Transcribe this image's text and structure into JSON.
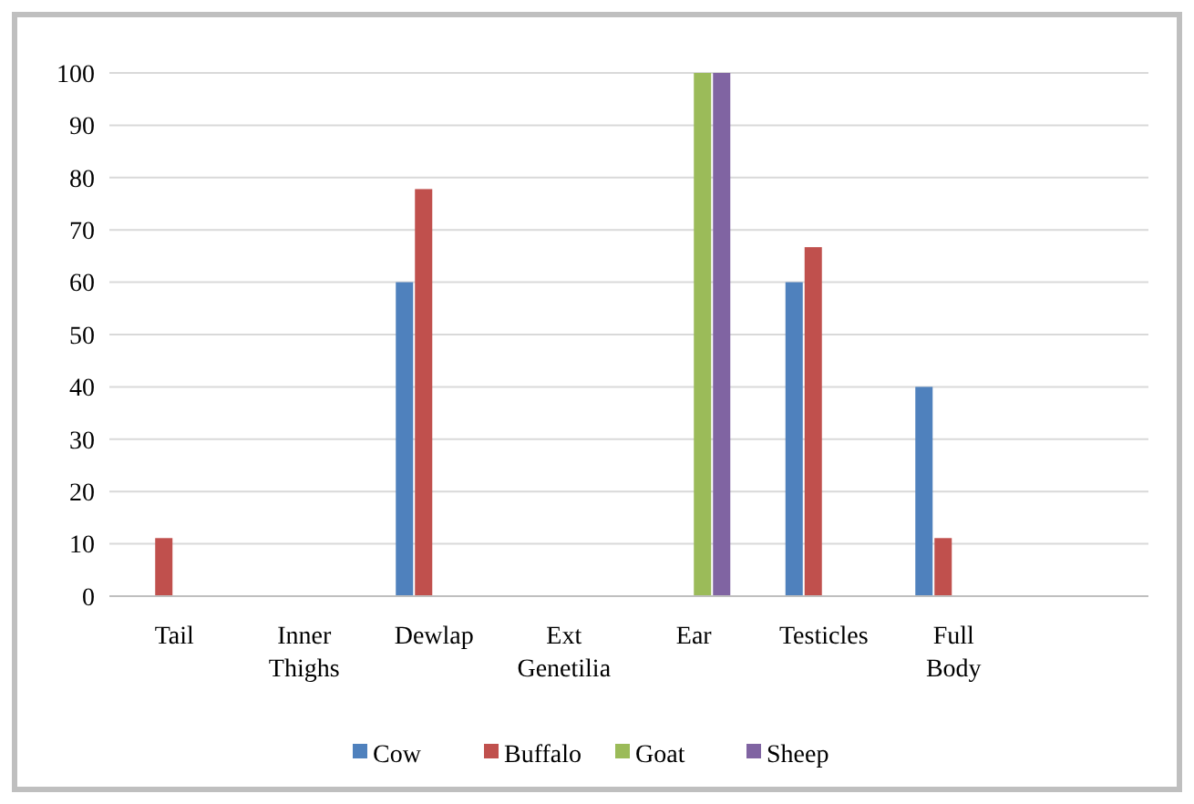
{
  "chart_data": {
    "type": "bar",
    "categories": [
      "Tail",
      "Inner Thighs",
      "Dewlap",
      "Ext Genetilia",
      "Ear",
      "Testicles",
      "Full Body",
      null
    ],
    "series": [
      {
        "name": "Cow",
        "color": "#4f81bd",
        "values": [
          null,
          null,
          60,
          null,
          null,
          60,
          40,
          null
        ]
      },
      {
        "name": "Buffalo",
        "color": "#c0504d",
        "values": [
          11.1,
          null,
          77.8,
          null,
          null,
          66.7,
          11.1,
          null
        ]
      },
      {
        "name": "Goat",
        "color": "#9bbb59",
        "values": [
          null,
          null,
          null,
          null,
          100,
          null,
          null,
          null
        ]
      },
      {
        "name": "Sheep",
        "color": "#8064a2",
        "values": [
          null,
          null,
          null,
          null,
          100,
          null,
          null,
          null
        ]
      }
    ],
    "ylim": [
      0,
      100
    ],
    "yticks": [
      0,
      10,
      20,
      30,
      40,
      50,
      60,
      70,
      80,
      90,
      100
    ],
    "grid": "y",
    "legend": "bottom"
  }
}
